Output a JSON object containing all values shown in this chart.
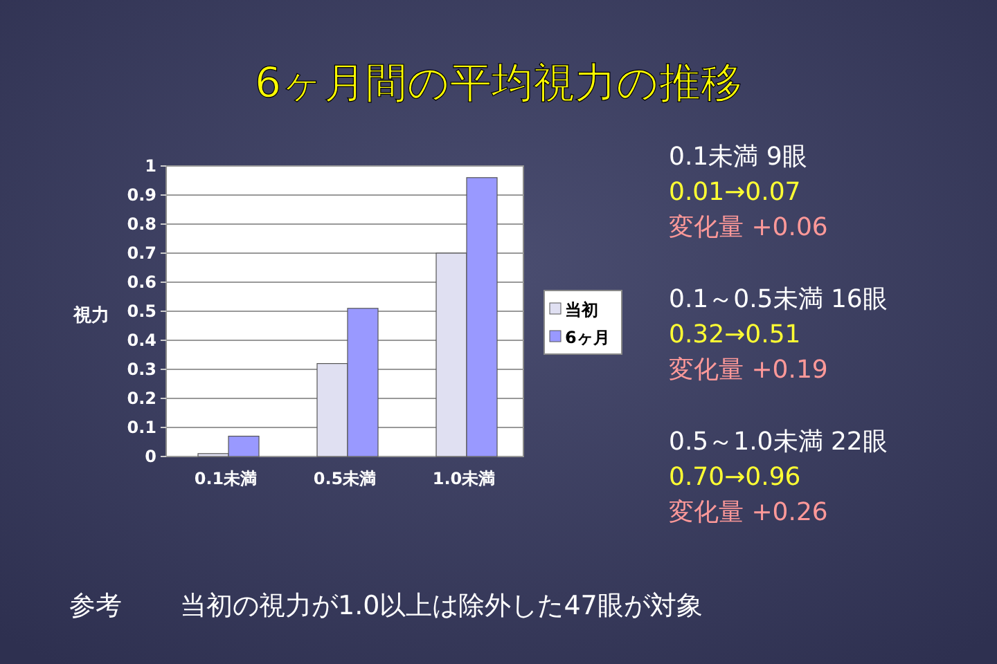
{
  "chart_data": {
    "type": "bar",
    "title": "6ヶ月間の平均視力の推移",
    "ylabel": "視力",
    "categories": [
      "0.1未満",
      "0.5未満",
      "1.0未満"
    ],
    "series": [
      {
        "name": "当初",
        "color": "#e0e0f2",
        "values": [
          0.01,
          0.32,
          0.7
        ]
      },
      {
        "name": "6ヶ月",
        "color": "#9999ff",
        "values": [
          0.07,
          0.51,
          0.96
        ]
      }
    ],
    "ylim": [
      0,
      1
    ],
    "yticks": [
      0,
      0.1,
      0.2,
      0.3,
      0.4,
      0.5,
      0.6,
      0.7,
      0.8,
      0.9,
      1
    ],
    "grid": "y",
    "legend": "right",
    "annotations": [
      "0.1未満  9眼",
      "0.01→0.07",
      "変化量  +0.06",
      "0.1～0.5未満  16眼",
      "0.32→0.51",
      "変化量  +0.19",
      "0.5～1.0未満  22眼",
      "0.70→0.96",
      "変化量  +0.26",
      "参考",
      "当初の視力が1.0以上は除外した47眼が対象"
    ]
  }
}
